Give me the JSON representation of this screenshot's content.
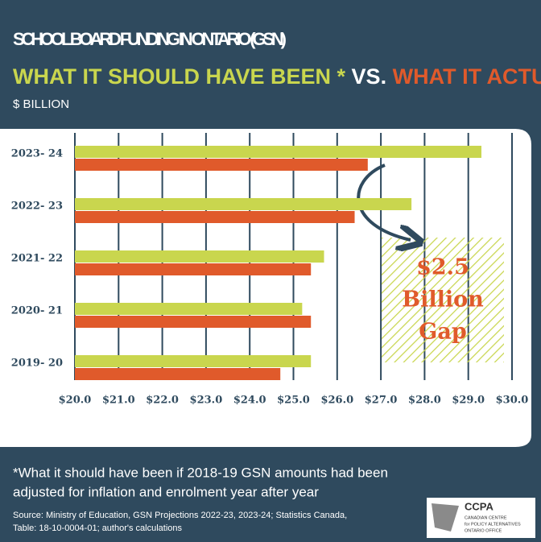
{
  "chart_data": {
    "type": "hbar",
    "title": "SCHOOL BOARD FUNDING IN ONTARIO (GSN)",
    "subtitle_star": "*",
    "subtitle_vs": "VS.",
    "unit_label": "$ BILLION",
    "categories": [
      "2023- 24",
      "2022- 23",
      "2021- 22",
      "2020- 21",
      "2019- 20"
    ],
    "series": [
      {
        "name": "WHAT IT SHOULD HAVE BEEN",
        "color": "#c9d64e",
        "values": [
          29.3,
          27.7,
          25.7,
          25.2,
          25.4
        ]
      },
      {
        "name": "WHAT IT ACTUALLY IS",
        "color": "#e05a2b",
        "values": [
          26.7,
          26.4,
          25.4,
          25.4,
          24.7
        ]
      }
    ],
    "xlim": [
      20,
      30
    ],
    "xticks": [
      {
        "value": 20,
        "label": "$20.0"
      },
      {
        "value": 21,
        "label": "$21.0"
      },
      {
        "value": 22,
        "label": "$22.0"
      },
      {
        "value": 23,
        "label": "$23.0"
      },
      {
        "value": 24,
        "label": "$24.0"
      },
      {
        "value": 25,
        "label": "$25.0"
      },
      {
        "value": 26,
        "label": "$26.0"
      },
      {
        "value": 27,
        "label": "$27.0"
      },
      {
        "value": 28,
        "label": "$28.0"
      },
      {
        "value": 29,
        "label": "$29.0"
      },
      {
        "value": 30,
        "label": "$30.0"
      }
    ],
    "grid": true,
    "annotation": [
      "$2.5",
      "Billion",
      "Gap"
    ],
    "footnote": [
      "*What it should have been if 2018-19 GSN amounts had been",
      "adjusted for inflation and enrolment year after year"
    ],
    "source": [
      "Source: Ministry of Education, GSN Projections 2022-23, 2023-24; Statistics Canada,",
      "Table: 18-10-0004-01; author's calculations"
    ],
    "logo": {
      "name": "CCPA",
      "lines": [
        "CANADIAN CENTRE",
        "for POLICY ALTERNATIVES",
        "ONTARIO OFFICE"
      ]
    }
  }
}
